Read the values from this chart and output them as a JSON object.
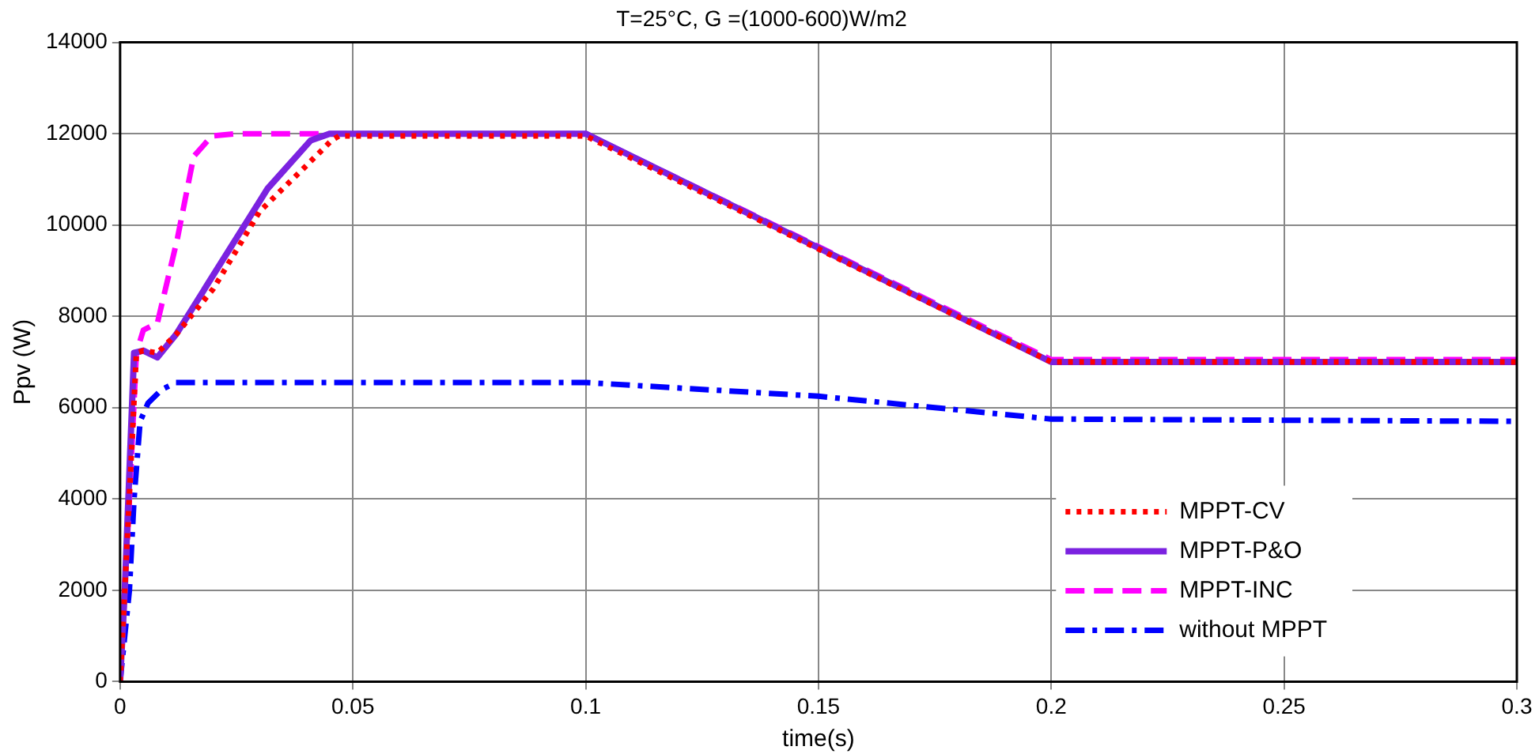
{
  "chart_data": {
    "type": "line",
    "title": "T=25°C, G =(1000-600)W/m2",
    "xlabel": "time(s)",
    "ylabel": "Ppv (W)",
    "xlim": [
      0,
      0.3
    ],
    "xticks": [
      0,
      0.05,
      0.1,
      0.15,
      0.2,
      0.25,
      0.3
    ],
    "ylim": [
      0,
      14000
    ],
    "yticks": [
      0,
      2000,
      4000,
      6000,
      8000,
      10000,
      12000,
      14000
    ],
    "grid": true,
    "legend": "bottom right",
    "marker": "none",
    "series": [
      {
        "name": "MPPT-CV",
        "color": "#ff0000",
        "line_style": "dotted",
        "x": [
          0,
          0.001,
          0.0035,
          0.005,
          0.008,
          0.012,
          0.02,
          0.03,
          0.04,
          0.0454,
          0.047,
          0.1,
          0.2,
          0.3
        ],
        "values": [
          0,
          2000,
          7200,
          7250,
          7200,
          7600,
          8600,
          10300,
          11300,
          11850,
          11950,
          11950,
          7000,
          7000
        ]
      },
      {
        "name": "MPPT-P&O",
        "color": "#7b22e0",
        "line_style": "solid",
        "x": [
          0,
          0.001,
          0.003,
          0.005,
          0.008,
          0.012,
          0.02,
          0.0317,
          0.0409,
          0.045,
          0.1,
          0.2,
          0.3
        ],
        "values": [
          0,
          2000,
          7200,
          7250,
          7100,
          7600,
          8900,
          10800,
          11850,
          12000,
          12000,
          7000,
          7000
        ]
      },
      {
        "name": "MPPT-INC",
        "color": "#ff00ff",
        "line_style": "dashed",
        "x": [
          0,
          0.002,
          0.0035,
          0.005,
          0.008,
          0.0123,
          0.0158,
          0.0197,
          0.025,
          0.1,
          0.2,
          0.3
        ],
        "values": [
          0,
          4000,
          7200,
          7700,
          7850,
          9700,
          11500,
          11950,
          12000,
          12000,
          7050,
          7050
        ]
      },
      {
        "name": "without MPPT",
        "color": "#0000ff",
        "line_style": "dashdot",
        "x": [
          0,
          0.002,
          0.003,
          0.0043,
          0.006,
          0.009,
          0.012,
          0.1,
          0.15,
          0.2,
          0.3
        ],
        "values": [
          0,
          2000,
          4000,
          5700,
          6100,
          6400,
          6550,
          6550,
          6250,
          5750,
          5700
        ]
      }
    ]
  }
}
